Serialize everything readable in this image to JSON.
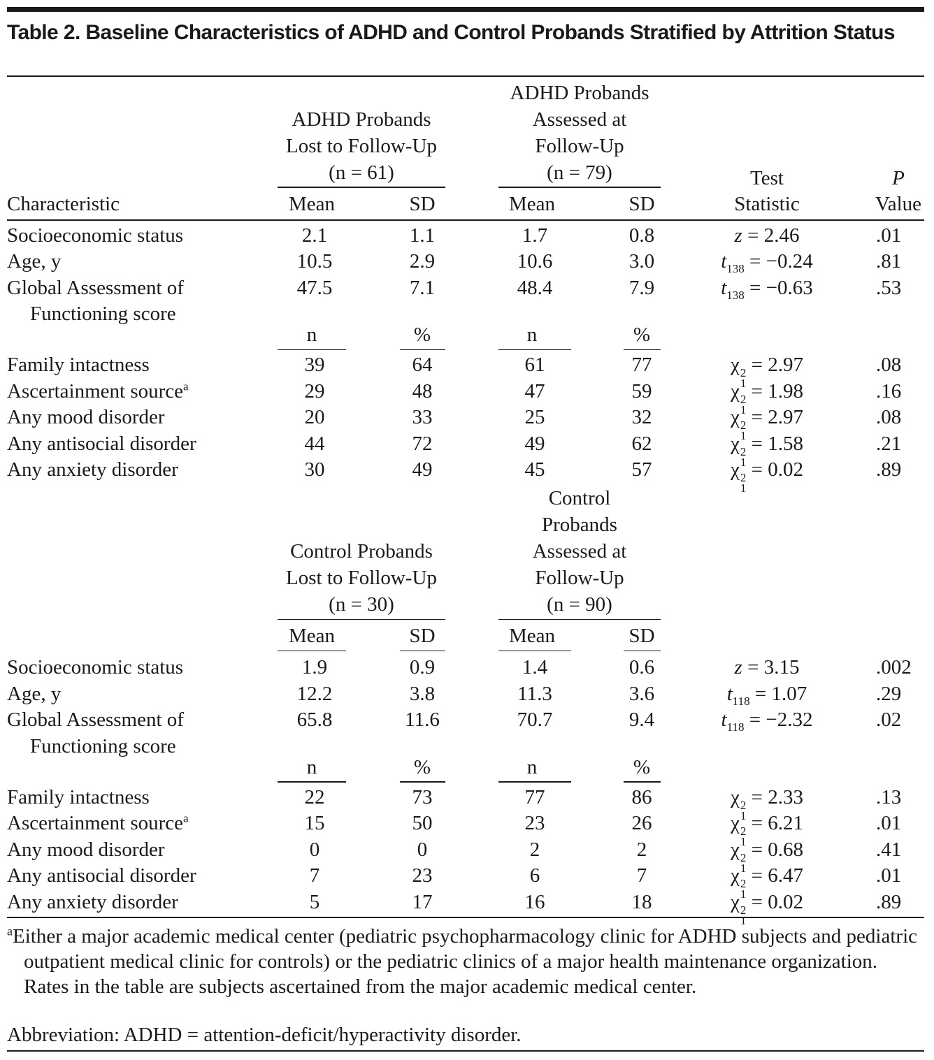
{
  "title": "Table 2. Baseline Characteristics of ADHD and Control Probands Stratified by Attrition Status",
  "columns": {
    "characteristic": "Characteristic",
    "test": [
      "Test",
      "Statistic"
    ],
    "p_symbol": "P",
    "p_word": "Value"
  },
  "sections": [
    {
      "groups": [
        [
          "ADHD Probands",
          "Lost to Follow-Up",
          "(n = 61)"
        ],
        [
          "ADHD Probands",
          "Assessed at",
          "Follow-Up",
          "(n = 79)"
        ]
      ],
      "mean_header": [
        "Mean",
        "SD",
        "Mean",
        "SD"
      ],
      "continuous_rows": [
        {
          "label": [
            "Socioeconomic status"
          ],
          "values": [
            "2.1",
            "1.1",
            "1.7",
            "0.8"
          ],
          "stat": {
            "sym": "z",
            "rest": " = 2.46"
          },
          "p": ".01"
        },
        {
          "label": [
            "Age, y"
          ],
          "values": [
            "10.5",
            "2.9",
            "10.6",
            "3.0"
          ],
          "stat": {
            "sym": "t",
            "sub": "138",
            "rest": " = −0.24"
          },
          "p": ".81"
        },
        {
          "label": [
            "Global Assessment of",
            "Functioning score"
          ],
          "values": [
            "47.5",
            "7.1",
            "48.4",
            "7.9"
          ],
          "stat": {
            "sym": "t",
            "sub": "138",
            "rest": " = −0.63"
          },
          "p": ".53"
        }
      ],
      "count_header": [
        "n",
        "%",
        "n",
        "%"
      ],
      "count_rows": [
        {
          "label": [
            "Family intactness"
          ],
          "values": [
            "39",
            "64",
            "61",
            "77"
          ],
          "stat": {
            "sym": "χ",
            "sup": "2",
            "sub": "1",
            "rest": " = 2.97"
          },
          "p": ".08"
        },
        {
          "label": [
            "Ascertainment source"
          ],
          "note": "a",
          "values": [
            "29",
            "48",
            "47",
            "59"
          ],
          "stat": {
            "sym": "χ",
            "sup": "2",
            "sub": "1",
            "rest": " = 1.98"
          },
          "p": ".16"
        },
        {
          "label": [
            "Any mood disorder"
          ],
          "values": [
            "20",
            "33",
            "25",
            "32"
          ],
          "stat": {
            "sym": "χ",
            "sup": "2",
            "sub": "1",
            "rest": " = 2.97"
          },
          "p": ".08"
        },
        {
          "label": [
            "Any antisocial disorder"
          ],
          "values": [
            "44",
            "72",
            "49",
            "62"
          ],
          "stat": {
            "sym": "χ",
            "sup": "2",
            "sub": "1",
            "rest": " = 1.58"
          },
          "p": ".21"
        },
        {
          "label": [
            "Any anxiety disorder"
          ],
          "values": [
            "30",
            "49",
            "45",
            "57"
          ],
          "stat": {
            "sym": "χ",
            "sup": "2",
            "sub": "1",
            "rest": " = 0.02"
          },
          "p": ".89"
        }
      ]
    },
    {
      "groups": [
        [
          "Control Probands",
          "Lost to Follow-Up",
          "(n = 30)"
        ],
        [
          "Control",
          "Probands",
          "Assessed at",
          "Follow-Up",
          "(n = 90)"
        ]
      ],
      "mean_header": [
        "Mean",
        "SD",
        "Mean",
        "SD"
      ],
      "continuous_rows": [
        {
          "label": [
            "Socioeconomic status"
          ],
          "values": [
            "1.9",
            "0.9",
            "1.4",
            "0.6"
          ],
          "stat": {
            "sym": "z",
            "rest": " = 3.15"
          },
          "p": ".002"
        },
        {
          "label": [
            "Age, y"
          ],
          "values": [
            "12.2",
            "3.8",
            "11.3",
            "3.6"
          ],
          "stat": {
            "sym": "t",
            "sub": "118",
            "rest": " = 1.07"
          },
          "p": ".29"
        },
        {
          "label": [
            "Global Assessment of",
            "Functioning score"
          ],
          "values": [
            "65.8",
            "11.6",
            "70.7",
            "9.4"
          ],
          "stat": {
            "sym": "t",
            "sub": "118",
            "rest": " = −2.32"
          },
          "p": ".02"
        }
      ],
      "count_header": [
        "n",
        "%",
        "n",
        "%"
      ],
      "count_rows": [
        {
          "label": [
            "Family intactness"
          ],
          "values": [
            "22",
            "73",
            "77",
            "86"
          ],
          "stat": {
            "sym": "χ",
            "sup": "2",
            "sub": "1",
            "rest": " = 2.33"
          },
          "p": ".13"
        },
        {
          "label": [
            "Ascertainment source"
          ],
          "note": "a",
          "values": [
            "15",
            "50",
            "23",
            "26"
          ],
          "stat": {
            "sym": "χ",
            "sup": "2",
            "sub": "1",
            "rest": " = 6.21"
          },
          "p": ".01"
        },
        {
          "label": [
            "Any mood disorder"
          ],
          "values": [
            "0",
            "0",
            "2",
            "2"
          ],
          "stat": {
            "sym": "χ",
            "sup": "2",
            "sub": "1",
            "rest": " = 0.68"
          },
          "p": ".41"
        },
        {
          "label": [
            "Any antisocial disorder"
          ],
          "values": [
            "7",
            "23",
            "6",
            "7"
          ],
          "stat": {
            "sym": "χ",
            "sup": "2",
            "sub": "1",
            "rest": " = 6.47"
          },
          "p": ".01"
        },
        {
          "label": [
            "Any anxiety disorder"
          ],
          "values": [
            "5",
            "17",
            "16",
            "18"
          ],
          "stat": {
            "sym": "χ",
            "sup": "2",
            "sub": "1",
            "rest": " = 0.02"
          },
          "p": ".89"
        }
      ]
    }
  ],
  "footnote": {
    "marker": "a",
    "text": "Either a major academic medical center (pediatric psychopharmacology clinic for ADHD subjects and pediatric outpatient medical clinic for controls) or the pediatric clinics of a major health maintenance organization. Rates in the table are subjects ascertained from the major academic medical center."
  },
  "abbreviation": "Abbreviation: ADHD = attention-deficit/hyperactivity disorder."
}
